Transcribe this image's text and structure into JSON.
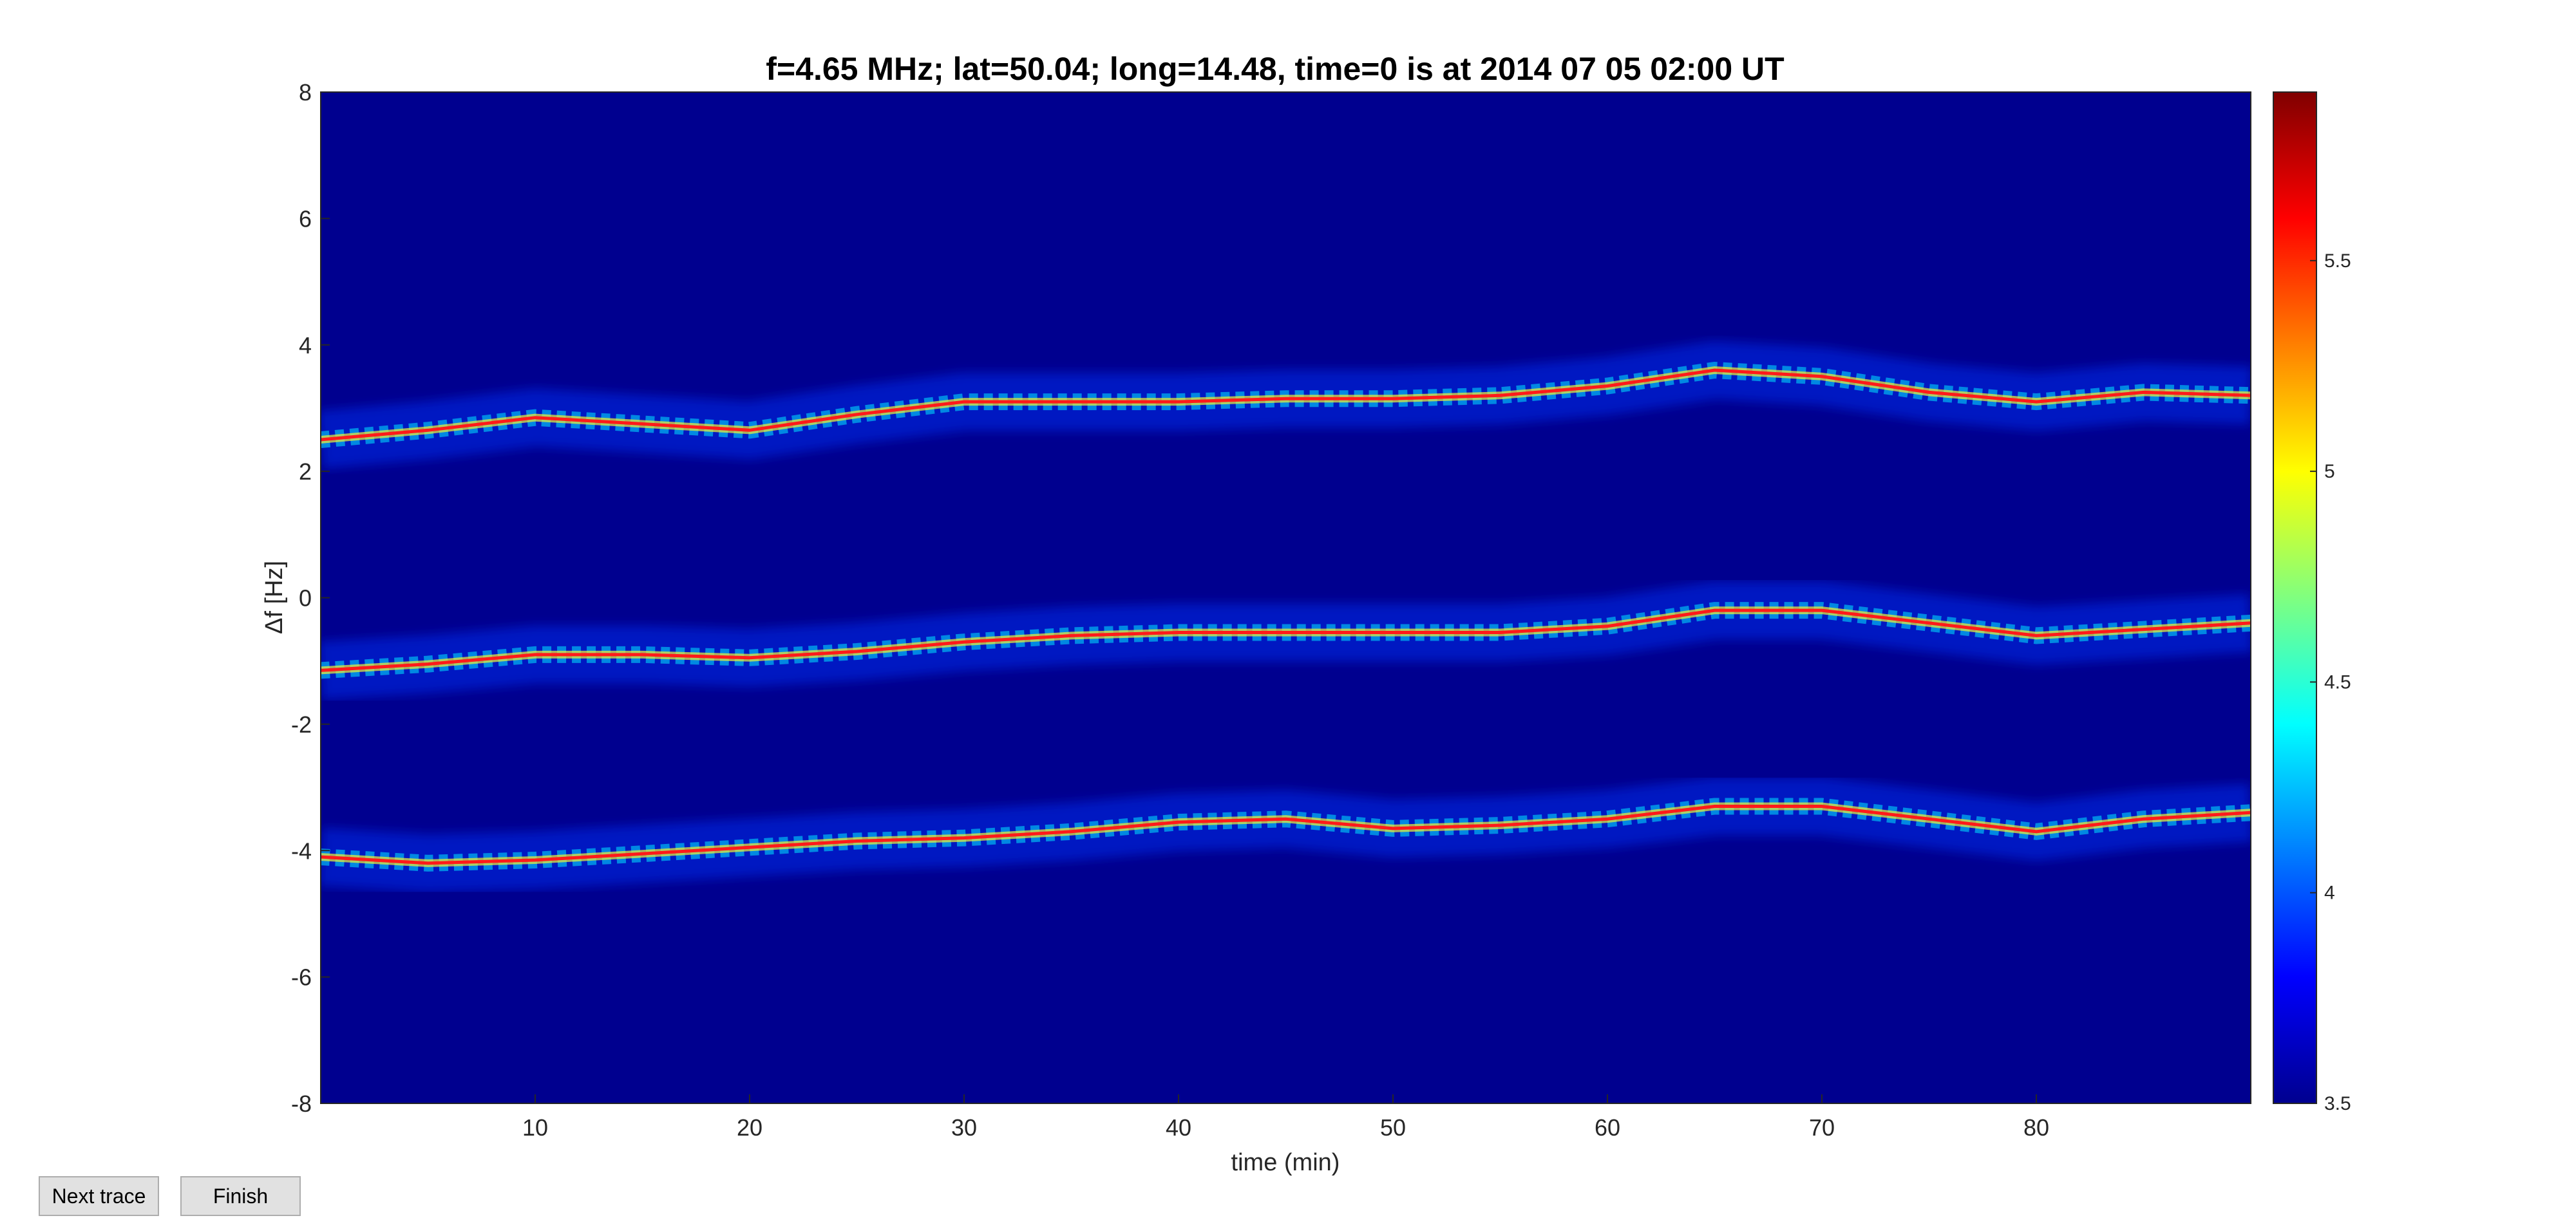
{
  "chart_data": {
    "type": "heatmap",
    "title": "f=4.65 MHz;  lat=50.04; long=14.48, time=0 is at 2014 07 05 02:00 UT",
    "xlabel": "time (min)",
    "ylabel": "Δf [Hz]",
    "xlim": [
      0,
      90
    ],
    "ylim": [
      -8,
      8
    ],
    "xticks": [
      10,
      20,
      30,
      40,
      50,
      60,
      70,
      80
    ],
    "yticks": [
      -8,
      -6,
      -4,
      -2,
      0,
      2,
      4,
      6,
      8
    ],
    "colorbar": {
      "colormap": "jet",
      "range": [
        3.5,
        5.9
      ],
      "ticks": [
        3.5,
        4,
        4.5,
        5,
        5.5
      ]
    },
    "background_color": "#00008f",
    "traces": [
      {
        "time": [
          0,
          5,
          10,
          15,
          20,
          25,
          30,
          35,
          40,
          45,
          50,
          55,
          60,
          65,
          70,
          75,
          80,
          85,
          90
        ],
        "delta_f": [
          2.5,
          2.65,
          2.85,
          2.75,
          2.65,
          2.9,
          3.1,
          3.1,
          3.1,
          3.15,
          3.15,
          3.2,
          3.35,
          3.6,
          3.5,
          3.25,
          3.1,
          3.25,
          3.2
        ]
      },
      {
        "time": [
          0,
          5,
          10,
          15,
          20,
          25,
          30,
          35,
          40,
          45,
          50,
          55,
          60,
          65,
          70,
          75,
          80,
          85,
          90
        ],
        "delta_f": [
          -1.15,
          -1.05,
          -0.9,
          -0.9,
          -0.95,
          -0.85,
          -0.7,
          -0.6,
          -0.55,
          -0.55,
          -0.55,
          -0.55,
          -0.45,
          -0.2,
          -0.2,
          -0.4,
          -0.6,
          -0.5,
          -0.4
        ]
      },
      {
        "time": [
          0,
          5,
          10,
          15,
          20,
          25,
          30,
          35,
          40,
          45,
          50,
          55,
          60,
          65,
          70,
          75,
          80,
          85,
          90
        ],
        "delta_f": [
          -4.1,
          -4.2,
          -4.15,
          -4.05,
          -3.95,
          -3.85,
          -3.8,
          -3.7,
          -3.55,
          -3.5,
          -3.65,
          -3.6,
          -3.5,
          -3.3,
          -3.3,
          -3.5,
          -3.7,
          -3.5,
          -3.4
        ]
      }
    ]
  },
  "controls": {
    "next_trace_label": "Next trace",
    "finish_label": "Finish"
  }
}
